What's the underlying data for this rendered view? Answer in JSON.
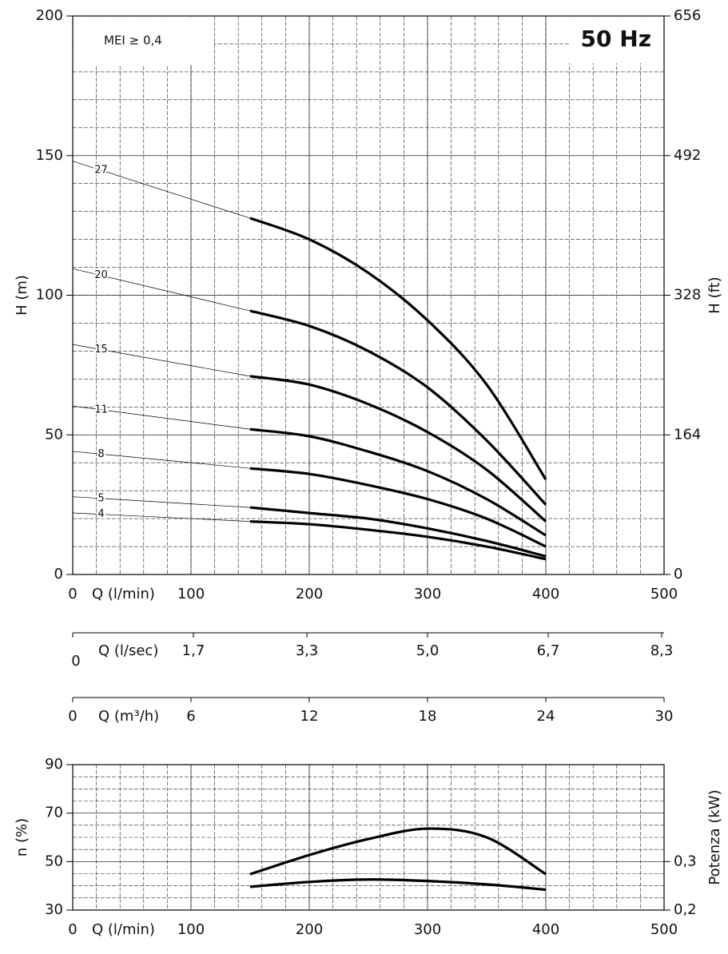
{
  "chart_data": [
    {
      "type": "line",
      "annotations": [
        "MEI ≥ 0,4",
        "50 Hz"
      ],
      "xlabel": "Q (l/min)",
      "ylabel": "H (m)",
      "y2label": "H (ft)",
      "xlim": [
        0,
        500
      ],
      "xticks": [
        0,
        100,
        200,
        300,
        400,
        500
      ],
      "ylim": [
        0,
        200
      ],
      "yticks": [
        0,
        50,
        100,
        150,
        200
      ],
      "y2lim": [
        0,
        656
      ],
      "y2ticks": [
        0,
        164,
        328,
        492,
        656
      ],
      "grid": true,
      "x": [
        150,
        200,
        250,
        300,
        350,
        400
      ],
      "series": [
        {
          "name": "27",
          "color": "#000000",
          "values": [
            127.6,
            120,
            108,
            91,
            68,
            34
          ]
        },
        {
          "name": "20",
          "color": "#000000",
          "values": [
            94.4,
            89,
            80,
            67,
            48,
            25
          ]
        },
        {
          "name": "15",
          "color": "#000000",
          "values": [
            71,
            68,
            61,
            51,
            37.5,
            19
          ]
        },
        {
          "name": "11",
          "color": "#000000",
          "values": [
            52,
            49.5,
            44,
            37,
            27,
            14
          ]
        },
        {
          "name": "8",
          "color": "#000000",
          "values": [
            38,
            36,
            32,
            27,
            20,
            10
          ]
        },
        {
          "name": "5",
          "color": "#000000",
          "values": [
            24,
            22,
            20,
            16.5,
            12,
            6.5
          ]
        },
        {
          "name": "4",
          "color": "#000000",
          "values": [
            19,
            18,
            16,
            13.5,
            10,
            5.5
          ]
        }
      ],
      "secondary_x_axes": [
        {
          "label": "Q (l/sec)",
          "xlim": [
            0,
            8.333
          ],
          "xticks": [
            0,
            {
              "value": 1.7,
              "label": "1,7"
            },
            {
              "value": 3.3,
              "label": "3,3"
            },
            {
              "value": 5.0,
              "label": "5,0"
            },
            {
              "value": 6.7,
              "label": "6,7"
            },
            {
              "value": 8.3,
              "label": "8,3"
            }
          ]
        },
        {
          "label": "Q (m³/h)",
          "xlim": [
            0,
            30
          ],
          "xticks": [
            0,
            6,
            12,
            18,
            24,
            30
          ]
        }
      ]
    },
    {
      "type": "line",
      "xlabel": "Q (l/min)",
      "ylabel": "n (%)",
      "y2label": "Potenza (kW)",
      "xlim": [
        0,
        500
      ],
      "xticks": [
        0,
        100,
        200,
        300,
        400,
        500
      ],
      "ylim": [
        30,
        90
      ],
      "yticks": [
        30,
        50,
        70,
        90
      ],
      "y2lim": [
        0.2,
        0.5
      ],
      "y2ticks": [
        {
          "value": 0.2,
          "label": "0,2"
        },
        {
          "value": 0.3,
          "label": "0,3"
        }
      ],
      "grid": true,
      "x": [
        150,
        200,
        250,
        300,
        350,
        400
      ],
      "series": [
        {
          "color": "#000000",
          "values": [
            44.8,
            52.7,
            59.3,
            63.6,
            60,
            44.8
          ]
        },
        {
          "color": "#000000",
          "axis": "y2",
          "values": [
            0.248,
            0.258,
            0.263,
            0.26,
            0.253,
            0.242
          ]
        }
      ]
    }
  ]
}
